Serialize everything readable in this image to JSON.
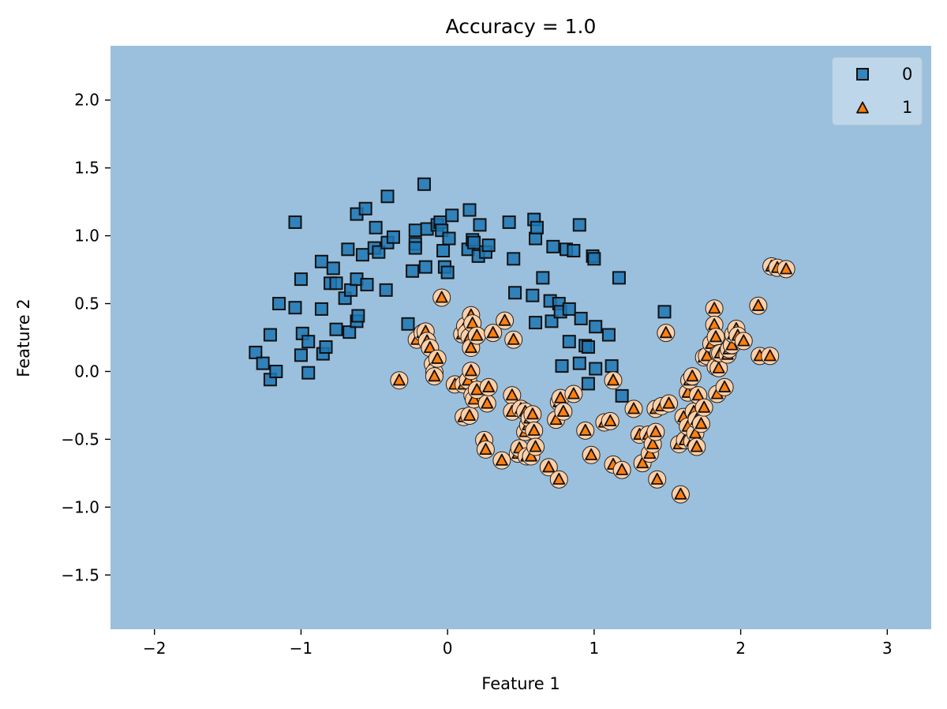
{
  "chart_data": {
    "type": "scatter",
    "title": "Accuracy = 1.0",
    "xlabel": "Feature 1",
    "ylabel": "Feature 2",
    "xlim": [
      -2.3,
      3.3
    ],
    "ylim": [
      -1.9,
      2.4
    ],
    "xticks": [
      -2,
      -1,
      0,
      1,
      2,
      3
    ],
    "xtick_labels": [
      "−2",
      "−1",
      "0",
      "1",
      "2",
      "3"
    ],
    "yticks": [
      2.0,
      1.5,
      1.0,
      0.5,
      0.0,
      -0.5,
      -1.0,
      -1.5
    ],
    "ytick_labels": [
      "2.0",
      "1.5",
      "1.0",
      "0.5",
      "0.0",
      "−0.5",
      "−1.0",
      "−1.5"
    ],
    "grid": false,
    "legend_position": "top-right",
    "decision_region_color": "#9bc0dd",
    "series": [
      {
        "name": "0",
        "marker": "square",
        "color": "#1f77b4",
        "points": [
          [
            -1.31,
            0.14
          ],
          [
            -1.26,
            0.06
          ],
          [
            -1.21,
            -0.06
          ],
          [
            -1.17,
            0.0
          ],
          [
            -1.21,
            0.27
          ],
          [
            -1.15,
            0.5
          ],
          [
            -1.04,
            0.47
          ],
          [
            -1.04,
            1.1
          ],
          [
            -1.0,
            0.12
          ],
          [
            -1.0,
            0.68
          ],
          [
            -0.99,
            0.28
          ],
          [
            -0.95,
            0.22
          ],
          [
            -0.95,
            -0.01
          ],
          [
            -0.86,
            0.46
          ],
          [
            -0.86,
            0.81
          ],
          [
            -0.85,
            0.13
          ],
          [
            -0.83,
            0.18
          ],
          [
            -0.8,
            0.65
          ],
          [
            -0.78,
            0.76
          ],
          [
            -0.76,
            0.65
          ],
          [
            -0.76,
            0.31
          ],
          [
            -0.7,
            0.54
          ],
          [
            -0.68,
            0.9
          ],
          [
            -0.67,
            0.29
          ],
          [
            -0.66,
            0.6
          ],
          [
            -0.62,
            0.37
          ],
          [
            -0.62,
            0.68
          ],
          [
            -0.62,
            1.16
          ],
          [
            -0.61,
            0.41
          ],
          [
            -0.58,
            0.86
          ],
          [
            -0.56,
            1.2
          ],
          [
            -0.55,
            0.64
          ],
          [
            -0.5,
            0.91
          ],
          [
            -0.49,
            1.06
          ],
          [
            -0.47,
            0.88
          ],
          [
            -0.42,
            0.6
          ],
          [
            -0.41,
            0.95
          ],
          [
            -0.41,
            1.29
          ],
          [
            -0.37,
            0.99
          ],
          [
            -0.27,
            0.35
          ],
          [
            -0.24,
            0.74
          ],
          [
            -0.22,
            0.94
          ],
          [
            -0.22,
            0.91
          ],
          [
            -0.22,
            1.04
          ],
          [
            -0.16,
            1.38
          ],
          [
            -0.15,
            0.77
          ],
          [
            -0.14,
            1.05
          ],
          [
            -0.07,
            1.08
          ],
          [
            -0.05,
            1.1
          ],
          [
            -0.04,
            1.04
          ],
          [
            -0.03,
            0.89
          ],
          [
            -0.02,
            0.77
          ],
          [
            0.0,
            0.73
          ],
          [
            0.01,
            0.98
          ],
          [
            0.03,
            1.15
          ],
          [
            0.14,
            0.9
          ],
          [
            0.15,
            1.19
          ],
          [
            0.17,
            0.97
          ],
          [
            0.18,
            0.95
          ],
          [
            0.21,
            0.85
          ],
          [
            0.22,
            1.08
          ],
          [
            0.26,
            0.88
          ],
          [
            0.28,
            0.93
          ],
          [
            0.42,
            1.1
          ],
          [
            0.45,
            0.83
          ],
          [
            0.46,
            0.58
          ],
          [
            0.58,
            0.56
          ],
          [
            0.59,
            1.12
          ],
          [
            0.6,
            0.98
          ],
          [
            0.6,
            0.36
          ],
          [
            0.61,
            1.06
          ],
          [
            0.65,
            0.69
          ],
          [
            0.7,
            0.52
          ],
          [
            0.71,
            0.37
          ],
          [
            0.72,
            0.92
          ],
          [
            0.76,
            0.5
          ],
          [
            0.77,
            0.44
          ],
          [
            0.78,
            0.04
          ],
          [
            0.81,
            0.9
          ],
          [
            0.83,
            0.22
          ],
          [
            0.83,
            0.46
          ],
          [
            0.86,
            0.89
          ],
          [
            0.9,
            1.08
          ],
          [
            0.9,
            0.06
          ],
          [
            0.91,
            0.39
          ],
          [
            0.94,
            0.19
          ],
          [
            0.96,
            0.18
          ],
          [
            0.96,
            -0.09
          ],
          [
            0.99,
            0.85
          ],
          [
            1.0,
            0.83
          ],
          [
            1.01,
            0.33
          ],
          [
            1.01,
            0.02
          ],
          [
            1.1,
            0.27
          ],
          [
            1.12,
            0.04
          ],
          [
            1.17,
            0.69
          ],
          [
            1.19,
            -0.18
          ],
          [
            1.48,
            0.44
          ]
        ]
      },
      {
        "name": "1",
        "marker": "triangle",
        "color": "#ff7f0e",
        "points": [
          [
            -0.33,
            -0.06
          ],
          [
            -0.21,
            0.24
          ],
          [
            -0.17,
            0.29
          ],
          [
            -0.15,
            0.3
          ],
          [
            -0.14,
            0.23
          ],
          [
            -0.12,
            0.18
          ],
          [
            -0.1,
            0.06
          ],
          [
            -0.09,
            0.0
          ],
          [
            -0.09,
            -0.03
          ],
          [
            -0.07,
            0.1
          ],
          [
            -0.04,
            0.55
          ],
          [
            0.05,
            -0.09
          ],
          [
            0.1,
            0.28
          ],
          [
            0.11,
            -0.09
          ],
          [
            0.11,
            -0.33
          ],
          [
            0.12,
            0.34
          ],
          [
            0.13,
            0.29
          ],
          [
            0.14,
            -0.06
          ],
          [
            0.15,
            -0.32
          ],
          [
            0.15,
            0.26
          ],
          [
            0.16,
            0.01
          ],
          [
            0.16,
            0.18
          ],
          [
            0.16,
            0.42
          ],
          [
            0.17,
            0.36
          ],
          [
            0.17,
            -0.17
          ],
          [
            0.18,
            -0.2
          ],
          [
            0.2,
            -0.13
          ],
          [
            0.2,
            0.27
          ],
          [
            0.25,
            -0.5
          ],
          [
            0.26,
            -0.57
          ],
          [
            0.27,
            -0.23
          ],
          [
            0.28,
            -0.11
          ],
          [
            0.31,
            0.29
          ],
          [
            0.37,
            -0.65
          ],
          [
            0.39,
            0.38
          ],
          [
            0.44,
            -0.17
          ],
          [
            0.44,
            -0.29
          ],
          [
            0.45,
            0.24
          ],
          [
            0.48,
            -0.6
          ],
          [
            0.49,
            -0.56
          ],
          [
            0.5,
            -0.27
          ],
          [
            0.53,
            -0.44
          ],
          [
            0.53,
            -0.29
          ],
          [
            0.54,
            -0.62
          ],
          [
            0.55,
            -0.39
          ],
          [
            0.56,
            -0.34
          ],
          [
            0.57,
            -0.62
          ],
          [
            0.58,
            -0.31
          ],
          [
            0.59,
            -0.43
          ],
          [
            0.6,
            -0.55
          ],
          [
            0.69,
            -0.7
          ],
          [
            0.74,
            -0.35
          ],
          [
            0.76,
            -0.79
          ],
          [
            0.76,
            -0.22
          ],
          [
            0.77,
            -0.19
          ],
          [
            0.79,
            -0.29
          ],
          [
            0.86,
            -0.16
          ],
          [
            0.94,
            -0.43
          ],
          [
            0.98,
            -0.61
          ],
          [
            1.07,
            -0.37
          ],
          [
            1.11,
            -0.36
          ],
          [
            1.13,
            -0.06
          ],
          [
            1.13,
            -0.68
          ],
          [
            1.19,
            -0.72
          ],
          [
            1.27,
            -0.27
          ],
          [
            1.31,
            -0.46
          ],
          [
            1.33,
            -0.67
          ],
          [
            1.37,
            -0.46
          ],
          [
            1.38,
            -0.6
          ],
          [
            1.4,
            -0.53
          ],
          [
            1.42,
            -0.44
          ],
          [
            1.42,
            -0.27
          ],
          [
            1.43,
            -0.79
          ],
          [
            1.46,
            -0.25
          ],
          [
            1.49,
            0.29
          ],
          [
            1.51,
            -0.23
          ],
          [
            1.58,
            -0.53
          ],
          [
            1.59,
            -0.9
          ],
          [
            1.61,
            -0.33
          ],
          [
            1.62,
            -0.5
          ],
          [
            1.64,
            -0.15
          ],
          [
            1.64,
            -0.4
          ],
          [
            1.65,
            -0.06
          ],
          [
            1.67,
            -0.03
          ],
          [
            1.67,
            -0.51
          ],
          [
            1.68,
            -0.29
          ],
          [
            1.69,
            -0.45
          ],
          [
            1.7,
            -0.35
          ],
          [
            1.7,
            -0.55
          ],
          [
            1.71,
            -0.17
          ],
          [
            1.73,
            -0.38
          ],
          [
            1.75,
            -0.26
          ],
          [
            1.75,
            0.11
          ],
          [
            1.77,
            0.12
          ],
          [
            1.8,
            0.21
          ],
          [
            1.82,
            0.47
          ],
          [
            1.82,
            0.35
          ],
          [
            1.83,
            0.04
          ],
          [
            1.83,
            0.26
          ],
          [
            1.84,
            -0.16
          ],
          [
            1.85,
            0.03
          ],
          [
            1.85,
            0.14
          ],
          [
            1.86,
            0.14
          ],
          [
            1.89,
            -0.11
          ],
          [
            1.91,
            0.13
          ],
          [
            1.92,
            0.17
          ],
          [
            1.94,
            0.2
          ],
          [
            1.95,
            0.28
          ],
          [
            1.97,
            0.32
          ],
          [
            1.98,
            0.27
          ],
          [
            2.02,
            0.23
          ],
          [
            2.12,
            0.49
          ],
          [
            2.13,
            0.12
          ],
          [
            2.2,
            0.12
          ],
          [
            2.21,
            0.78
          ],
          [
            2.25,
            0.77
          ],
          [
            2.31,
            0.76
          ]
        ]
      }
    ]
  }
}
